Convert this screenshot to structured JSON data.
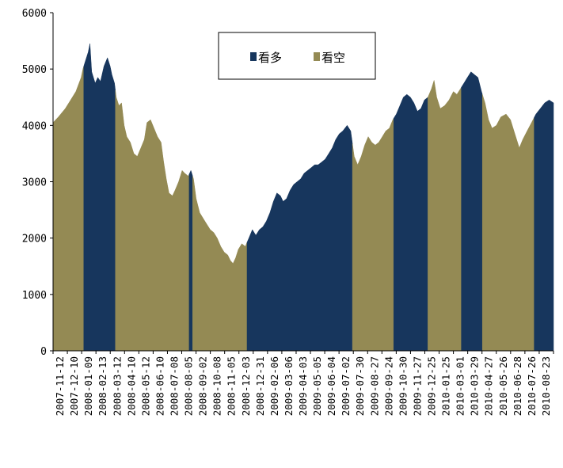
{
  "chart_data": {
    "type": "area",
    "ylim": [
      0,
      6000
    ],
    "yticks": [
      0,
      1000,
      2000,
      3000,
      4000,
      5000,
      6000
    ],
    "grid": false,
    "legend_position": "top-center",
    "x_labels": [
      "2007-11-12",
      "2007-12-10",
      "2008-01-09",
      "2008-02-13",
      "2008-03-12",
      "2008-04-10",
      "2008-05-12",
      "2008-06-10",
      "2008-07-08",
      "2008-08-05",
      "2008-09-02",
      "2008-10-08",
      "2008-11-05",
      "2008-12-03",
      "2008-12-31",
      "2009-02-06",
      "2009-03-06",
      "2009-04-03",
      "2009-05-05",
      "2009-06-04",
      "2009-07-02",
      "2009-07-30",
      "2009-08-27",
      "2009-09-24",
      "2009-10-30",
      "2009-11-27",
      "2009-12-25",
      "2010-01-25",
      "2010-03-01",
      "2010-03-29",
      "2010-04-27",
      "2010-05-26",
      "2010-06-28",
      "2010-07-26",
      "2010-08-23"
    ],
    "series": [
      {
        "name": "看多",
        "color": "#17365d"
      },
      {
        "name": "看空",
        "color": "#948a54"
      }
    ],
    "points": [
      [
        0,
        4050
      ],
      [
        0.3,
        4150
      ],
      [
        0.7,
        4300
      ],
      [
        1.0,
        4450
      ],
      [
        1.3,
        4600
      ],
      [
        1.6,
        4850
      ],
      [
        1.7,
        5000
      ],
      [
        1.85,
        5150
      ],
      [
        2.0,
        5300
      ],
      [
        2.1,
        5450
      ],
      [
        2.2,
        4950
      ],
      [
        2.4,
        4750
      ],
      [
        2.55,
        4850
      ],
      [
        2.7,
        4780
      ],
      [
        2.9,
        5050
      ],
      [
        3.1,
        5200
      ],
      [
        3.25,
        5050
      ],
      [
        3.35,
        4900
      ],
      [
        3.5,
        4750
      ],
      [
        3.6,
        4500
      ],
      [
        3.75,
        4350
      ],
      [
        3.9,
        4400
      ],
      [
        4.05,
        4000
      ],
      [
        4.2,
        3800
      ],
      [
        4.4,
        3700
      ],
      [
        4.6,
        3500
      ],
      [
        4.8,
        3450
      ],
      [
        5.0,
        3600
      ],
      [
        5.2,
        3750
      ],
      [
        5.35,
        4050
      ],
      [
        5.55,
        4100
      ],
      [
        5.75,
        3950
      ],
      [
        5.95,
        3800
      ],
      [
        6.15,
        3700
      ],
      [
        6.3,
        3350
      ],
      [
        6.45,
        3050
      ],
      [
        6.6,
        2800
      ],
      [
        6.8,
        2750
      ],
      [
        6.95,
        2850
      ],
      [
        7.15,
        3000
      ],
      [
        7.35,
        3200
      ],
      [
        7.5,
        3150
      ],
      [
        7.7,
        3100
      ],
      [
        7.85,
        3200
      ],
      [
        8.0,
        3050
      ],
      [
        8.15,
        2700
      ],
      [
        8.35,
        2450
      ],
      [
        8.55,
        2350
      ],
      [
        8.75,
        2250
      ],
      [
        8.95,
        2150
      ],
      [
        9.15,
        2100
      ],
      [
        9.35,
        2000
      ],
      [
        9.55,
        1850
      ],
      [
        9.75,
        1750
      ],
      [
        9.95,
        1700
      ],
      [
        10.1,
        1600
      ],
      [
        10.25,
        1550
      ],
      [
        10.4,
        1650
      ],
      [
        10.55,
        1800
      ],
      [
        10.75,
        1900
      ],
      [
        10.95,
        1850
      ],
      [
        11.15,
        2000
      ],
      [
        11.35,
        2150
      ],
      [
        11.55,
        2050
      ],
      [
        11.75,
        2150
      ],
      [
        11.95,
        2200
      ],
      [
        12.15,
        2300
      ],
      [
        12.35,
        2450
      ],
      [
        12.55,
        2650
      ],
      [
        12.75,
        2800
      ],
      [
        12.95,
        2750
      ],
      [
        13.1,
        2650
      ],
      [
        13.3,
        2700
      ],
      [
        13.5,
        2850
      ],
      [
        13.7,
        2950
      ],
      [
        13.9,
        3000
      ],
      [
        14.1,
        3050
      ],
      [
        14.3,
        3150
      ],
      [
        14.5,
        3200
      ],
      [
        14.7,
        3250
      ],
      [
        14.9,
        3300
      ],
      [
        15.1,
        3300
      ],
      [
        15.3,
        3350
      ],
      [
        15.5,
        3400
      ],
      [
        15.7,
        3500
      ],
      [
        15.9,
        3600
      ],
      [
        16.1,
        3750
      ],
      [
        16.3,
        3850
      ],
      [
        16.5,
        3900
      ],
      [
        16.75,
        4000
      ],
      [
        16.95,
        3900
      ],
      [
        17.15,
        3450
      ],
      [
        17.35,
        3300
      ],
      [
        17.55,
        3450
      ],
      [
        17.75,
        3650
      ],
      [
        17.95,
        3800
      ],
      [
        18.15,
        3700
      ],
      [
        18.35,
        3650
      ],
      [
        18.55,
        3700
      ],
      [
        18.75,
        3800
      ],
      [
        18.95,
        3900
      ],
      [
        19.15,
        3950
      ],
      [
        19.35,
        4100
      ],
      [
        19.55,
        4200
      ],
      [
        19.75,
        4350
      ],
      [
        19.95,
        4500
      ],
      [
        20.15,
        4550
      ],
      [
        20.35,
        4500
      ],
      [
        20.55,
        4400
      ],
      [
        20.75,
        4250
      ],
      [
        20.95,
        4300
      ],
      [
        21.15,
        4450
      ],
      [
        21.35,
        4500
      ],
      [
        21.55,
        4650
      ],
      [
        21.7,
        4800
      ],
      [
        21.85,
        4500
      ],
      [
        22.05,
        4300
      ],
      [
        22.3,
        4350
      ],
      [
        22.55,
        4450
      ],
      [
        22.8,
        4600
      ],
      [
        23.0,
        4550
      ],
      [
        23.2,
        4650
      ],
      [
        23.4,
        4750
      ],
      [
        23.6,
        4850
      ],
      [
        23.8,
        4950
      ],
      [
        24.0,
        4900
      ],
      [
        24.2,
        4850
      ],
      [
        24.4,
        4600
      ],
      [
        24.6,
        4400
      ],
      [
        24.8,
        4100
      ],
      [
        25.0,
        3950
      ],
      [
        25.25,
        4000
      ],
      [
        25.5,
        4150
      ],
      [
        25.8,
        4200
      ],
      [
        26.05,
        4100
      ],
      [
        26.3,
        3850
      ],
      [
        26.55,
        3600
      ],
      [
        26.75,
        3750
      ],
      [
        27.0,
        3900
      ],
      [
        27.25,
        4050
      ],
      [
        27.5,
        4200
      ],
      [
        27.75,
        4300
      ],
      [
        28.0,
        4400
      ],
      [
        28.25,
        4450
      ],
      [
        28.5,
        4400
      ]
    ],
    "regions": [
      {
        "from": 0,
        "to": 1.75,
        "series": "看空"
      },
      {
        "from": 1.75,
        "to": 3.55,
        "series": "看多"
      },
      {
        "from": 3.55,
        "to": 7.75,
        "series": "看空"
      },
      {
        "from": 7.75,
        "to": 7.95,
        "series": "看多"
      },
      {
        "from": 7.95,
        "to": 11.05,
        "series": "看空"
      },
      {
        "from": 11.05,
        "to": 17.05,
        "series": "看多"
      },
      {
        "from": 17.05,
        "to": 19.4,
        "series": "看空"
      },
      {
        "from": 19.4,
        "to": 21.35,
        "series": "看多"
      },
      {
        "from": 21.35,
        "to": 23.25,
        "series": "看空"
      },
      {
        "from": 23.25,
        "to": 24.45,
        "series": "看多"
      },
      {
        "from": 24.45,
        "to": 27.4,
        "series": "看空"
      },
      {
        "from": 27.4,
        "to": 28.5,
        "series": "看多"
      }
    ]
  }
}
